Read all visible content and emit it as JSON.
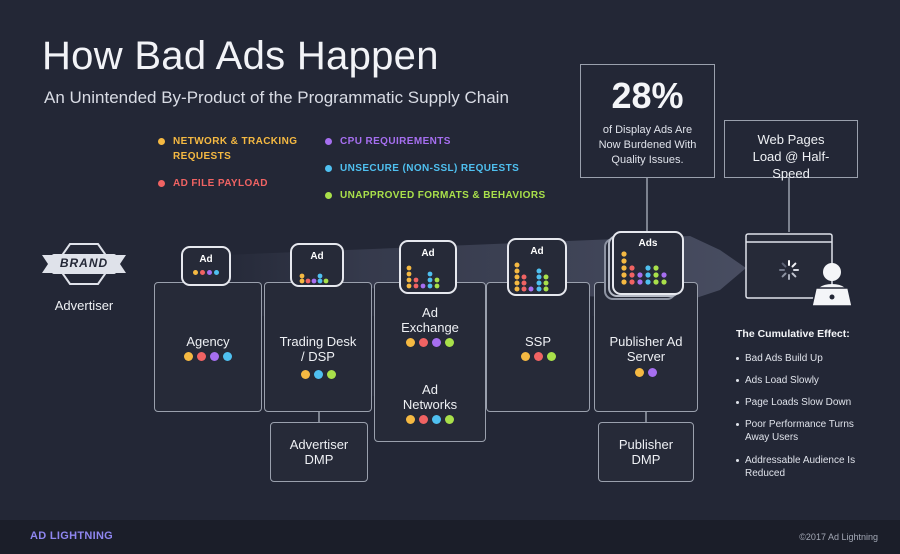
{
  "title": "How Bad Ads Happen",
  "subtitle": "An Unintended By-Product of the Programmatic Supply Chain",
  "legend": [
    {
      "label": "NETWORK & TRACKING REQUESTS",
      "color": "#f5b942"
    },
    {
      "label": "AD FILE PAYLOAD",
      "color": "#f06363"
    },
    {
      "label": "CPU REQUIREMENTS",
      "color": "#a66ff0"
    },
    {
      "label": "UNSECURE (NON-SSL) REQUESTS",
      "color": "#4fc0f0"
    },
    {
      "label": "UNAPPROVED FORMATS & BEHAVIORS",
      "color": "#a9e04a"
    }
  ],
  "stat": {
    "value": "28%",
    "text": "of Display Ads Are Now Burdened With Quality Issues."
  },
  "web_callout": "Web Pages Load @ Half-Speed",
  "brand": {
    "badge": "BRAND",
    "label": "Advertiser"
  },
  "stages": {
    "agency": "Agency",
    "trading_desk": "Trading Desk / DSP",
    "ad_exchange": "Ad Exchange",
    "ad_networks": "Ad Networks",
    "ssp": "SSP",
    "publisher_ad_server": "Publisher Ad Server",
    "advertiser_dmp": "Advertiser DMP",
    "publisher_dmp": "Publisher DMP"
  },
  "ad_labels": [
    "Ad",
    "Ad",
    "Ad",
    "Ad",
    "Ads"
  ],
  "effects": {
    "heading": "The Cumulative Effect:",
    "items": [
      "Bad Ads Build Up",
      "Ads Load Slowly",
      "Page Loads Slow Down",
      "Poor Performance Turns Away Users",
      "Addressable Audience Is Reduced"
    ]
  },
  "footer": {
    "logo": "AD LIGHTNING",
    "copyright": "©2017 Ad Lightning"
  }
}
